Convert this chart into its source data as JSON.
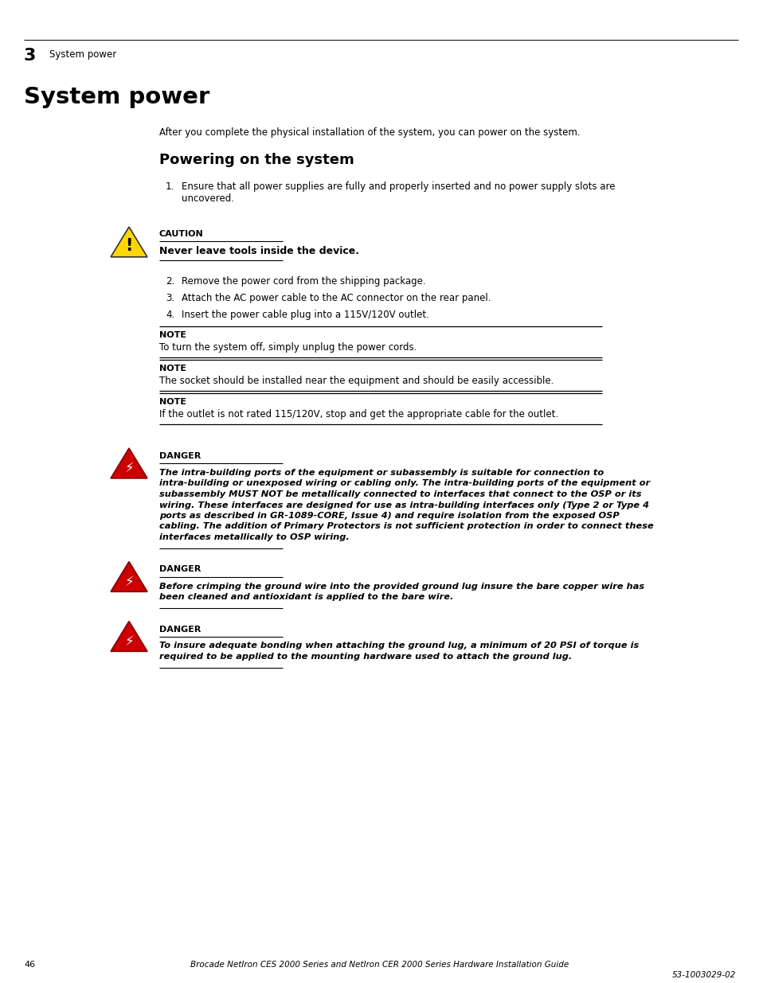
{
  "bg_color": "#ffffff",
  "page_number": "46",
  "footer_center": "Brocade NetIron CES 2000 Series and NetIron CER 2000 Series Hardware Installation Guide",
  "footer_right": "53-1003029-02",
  "chapter_num": "3",
  "chapter_title": "System power",
  "main_title": "System power",
  "intro_text": "After you complete the physical installation of the system, you can power on the system.",
  "section_title": "Powering on the system",
  "step1_line1": "Ensure that all power supplies are fully and properly inserted and no power supply slots are",
  "step1_line2": "uncovered.",
  "step2": "Remove the power cord from the shipping package.",
  "step3": "Attach the AC power cable to the AC connector on the rear panel.",
  "step4": "Insert the power cable plug into a 115V/120V outlet.",
  "caution_label": "CAUTION",
  "caution_text": "Never leave tools inside the device.",
  "note1_label": "NOTE",
  "note1_text": "To turn the system off, simply unplug the power cords.",
  "note2_label": "NOTE",
  "note2_text": "The socket should be installed near the equipment and should be easily accessible.",
  "note3_label": "NOTE",
  "note3_text": "If the outlet is not rated 115/120V, stop and get the appropriate cable for the outlet.",
  "danger1_label": "DANGER",
  "danger1_lines": [
    "The intra-building ports of the equipment or subassembly is suitable for connection to",
    "intra-building or unexposed wiring or cabling only. The intra-building ports of the equipment or",
    "subassembly MUST NOT be metallically connected to interfaces that connect to the OSP or its",
    "wiring. These interfaces are designed for use as intra-building interfaces only (Type 2 or Type 4",
    "ports as described in GR-1089-CORE, Issue 4) and require isolation from the exposed OSP",
    "cabling. The addition of Primary Protectors is not sufficient protection in order to connect these",
    "interfaces metallically to OSP wiring."
  ],
  "danger2_label": "DANGER",
  "danger2_lines": [
    "Before crimping the ground wire into the provided ground lug insure the bare copper wire has",
    "been cleaned and antioxidant is applied to the bare wire."
  ],
  "danger3_label": "DANGER",
  "danger3_lines": [
    "To insure adequate bonding when attaching the ground lug, a minimum of 20 PSI of torque is",
    "required to be applied to the mounting hardware used to attach the ground lug."
  ]
}
